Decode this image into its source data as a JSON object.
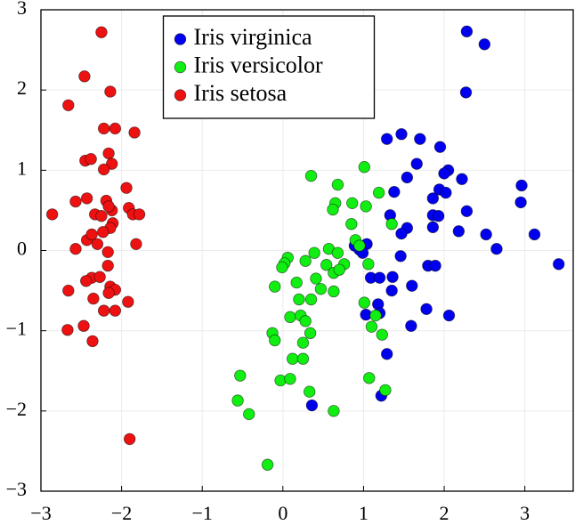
{
  "chart_data": {
    "type": "scatter",
    "xlim": [
      -3,
      3.6
    ],
    "ylim": [
      -3,
      3
    ],
    "xticks": [
      {
        "value": -3,
        "label": "−3"
      },
      {
        "value": -2,
        "label": "−2"
      },
      {
        "value": -1,
        "label": "−1"
      },
      0,
      1,
      2,
      3
    ],
    "yticks": [
      {
        "value": -3,
        "label": "−3"
      },
      {
        "value": -2,
        "label": "−2"
      },
      {
        "value": -1,
        "label": "−1"
      },
      0,
      1,
      2,
      3
    ],
    "grid": true,
    "legend": "upper center",
    "series": [
      {
        "name": "Iris virginica",
        "color": "#0000ee",
        "x": [
          2.28,
          2.5,
          2.27,
          1.47,
          1.29,
          1.7,
          1.95,
          1.66,
          1.54,
          2.05,
          2.0,
          2.22,
          1.38,
          1.94,
          2.02,
          1.86,
          2.96,
          2.95,
          1.33,
          1.86,
          1.93,
          2.28,
          1.54,
          1.47,
          1.86,
          2.18,
          2.52,
          3.12,
          2.65,
          1.04,
          0.89,
          0.95,
          0.99,
          1.46,
          3.42,
          1.8,
          1.89,
          1.36,
          1.09,
          1.2,
          1.6,
          1.35,
          1.18,
          1.78,
          2.06,
          1.03,
          1.2,
          1.59,
          1.29,
          1.22,
          0.36
        ],
        "y": [
          2.73,
          2.57,
          1.97,
          1.45,
          1.39,
          1.39,
          1.29,
          1.08,
          0.91,
          1.0,
          0.96,
          0.89,
          0.73,
          0.76,
          0.72,
          0.65,
          0.81,
          0.6,
          0.44,
          0.44,
          0.43,
          0.49,
          0.28,
          0.21,
          0.29,
          0.24,
          0.2,
          0.2,
          0.02,
          0.08,
          0.06,
          0.01,
          -0.03,
          -0.07,
          -0.17,
          -0.19,
          -0.19,
          -0.33,
          -0.34,
          -0.34,
          -0.44,
          -0.5,
          -0.67,
          -0.73,
          -0.81,
          -0.8,
          -0.78,
          -0.94,
          -1.29,
          -1.81,
          -1.93
        ]
      },
      {
        "name": "Iris versicolor",
        "color": "#11ee11",
        "x": [
          1.01,
          0.35,
          0.68,
          1.19,
          0.86,
          1.03,
          0.65,
          0.62,
          1.35,
          0.85,
          0.9,
          0.95,
          0.57,
          0.68,
          0.39,
          0.06,
          0.28,
          0.54,
          0.02,
          -0.01,
          0.76,
          1.06,
          0.63,
          0.7,
          0.41,
          0.17,
          -0.1,
          0.47,
          0.63,
          0.2,
          0.35,
          1.01,
          0.09,
          0.22,
          0.28,
          1.15,
          1.1,
          -0.13,
          0.34,
          1.23,
          -0.1,
          0.25,
          0.12,
          0.25,
          -0.53,
          1.07,
          -0.03,
          0.09,
          0.33,
          1.27,
          -0.56,
          -0.42,
          0.63,
          -0.19
        ],
        "y": [
          1.04,
          0.93,
          0.82,
          0.72,
          0.59,
          0.55,
          0.59,
          0.51,
          0.33,
          0.33,
          0.13,
          0.06,
          0.02,
          -0.03,
          -0.03,
          -0.09,
          -0.13,
          -0.18,
          -0.16,
          -0.21,
          -0.17,
          -0.17,
          -0.28,
          -0.24,
          -0.35,
          -0.4,
          -0.45,
          -0.48,
          -0.51,
          -0.61,
          -0.61,
          -0.65,
          -0.83,
          -0.81,
          -0.88,
          -0.81,
          -0.95,
          -1.03,
          -1.03,
          -1.05,
          -1.12,
          -1.15,
          -1.35,
          -1.35,
          -1.56,
          -1.59,
          -1.62,
          -1.6,
          -1.76,
          -1.74,
          -1.87,
          -2.04,
          -2.0,
          -2.67
        ]
      },
      {
        "name": "Iris setosa",
        "color": "#ee1111",
        "x": [
          -2.25,
          -2.46,
          -2.14,
          -2.66,
          -2.22,
          -2.08,
          -1.84,
          -2.16,
          -2.45,
          -2.38,
          -2.12,
          -2.22,
          -1.94,
          -2.43,
          -2.57,
          -2.19,
          -2.12,
          -1.91,
          -2.16,
          -2.86,
          -2.33,
          -1.86,
          -1.78,
          -2.25,
          -2.11,
          -2.14,
          -2.23,
          -2.43,
          -2.37,
          -2.3,
          -1.82,
          -2.57,
          -2.17,
          -2.17,
          -2.37,
          -2.44,
          -2.27,
          -2.14,
          -2.08,
          -2.16,
          -2.66,
          -2.35,
          -1.92,
          -2.22,
          -2.08,
          -2.47,
          -2.67,
          -2.36,
          -1.9
        ],
        "y": [
          2.72,
          2.17,
          1.98,
          1.81,
          1.52,
          1.52,
          1.47,
          1.21,
          1.12,
          1.14,
          1.08,
          1.01,
          0.78,
          0.65,
          0.61,
          0.62,
          0.5,
          0.53,
          0.55,
          0.45,
          0.45,
          0.45,
          0.45,
          0.43,
          0.34,
          0.28,
          0.23,
          0.13,
          0.2,
          0.08,
          0.08,
          0.02,
          -0.02,
          -0.19,
          -0.34,
          -0.38,
          -0.33,
          -0.45,
          -0.49,
          -0.53,
          -0.5,
          -0.6,
          -0.64,
          -0.75,
          -0.75,
          -0.94,
          -0.99,
          -1.13,
          -2.35
        ]
      }
    ]
  }
}
